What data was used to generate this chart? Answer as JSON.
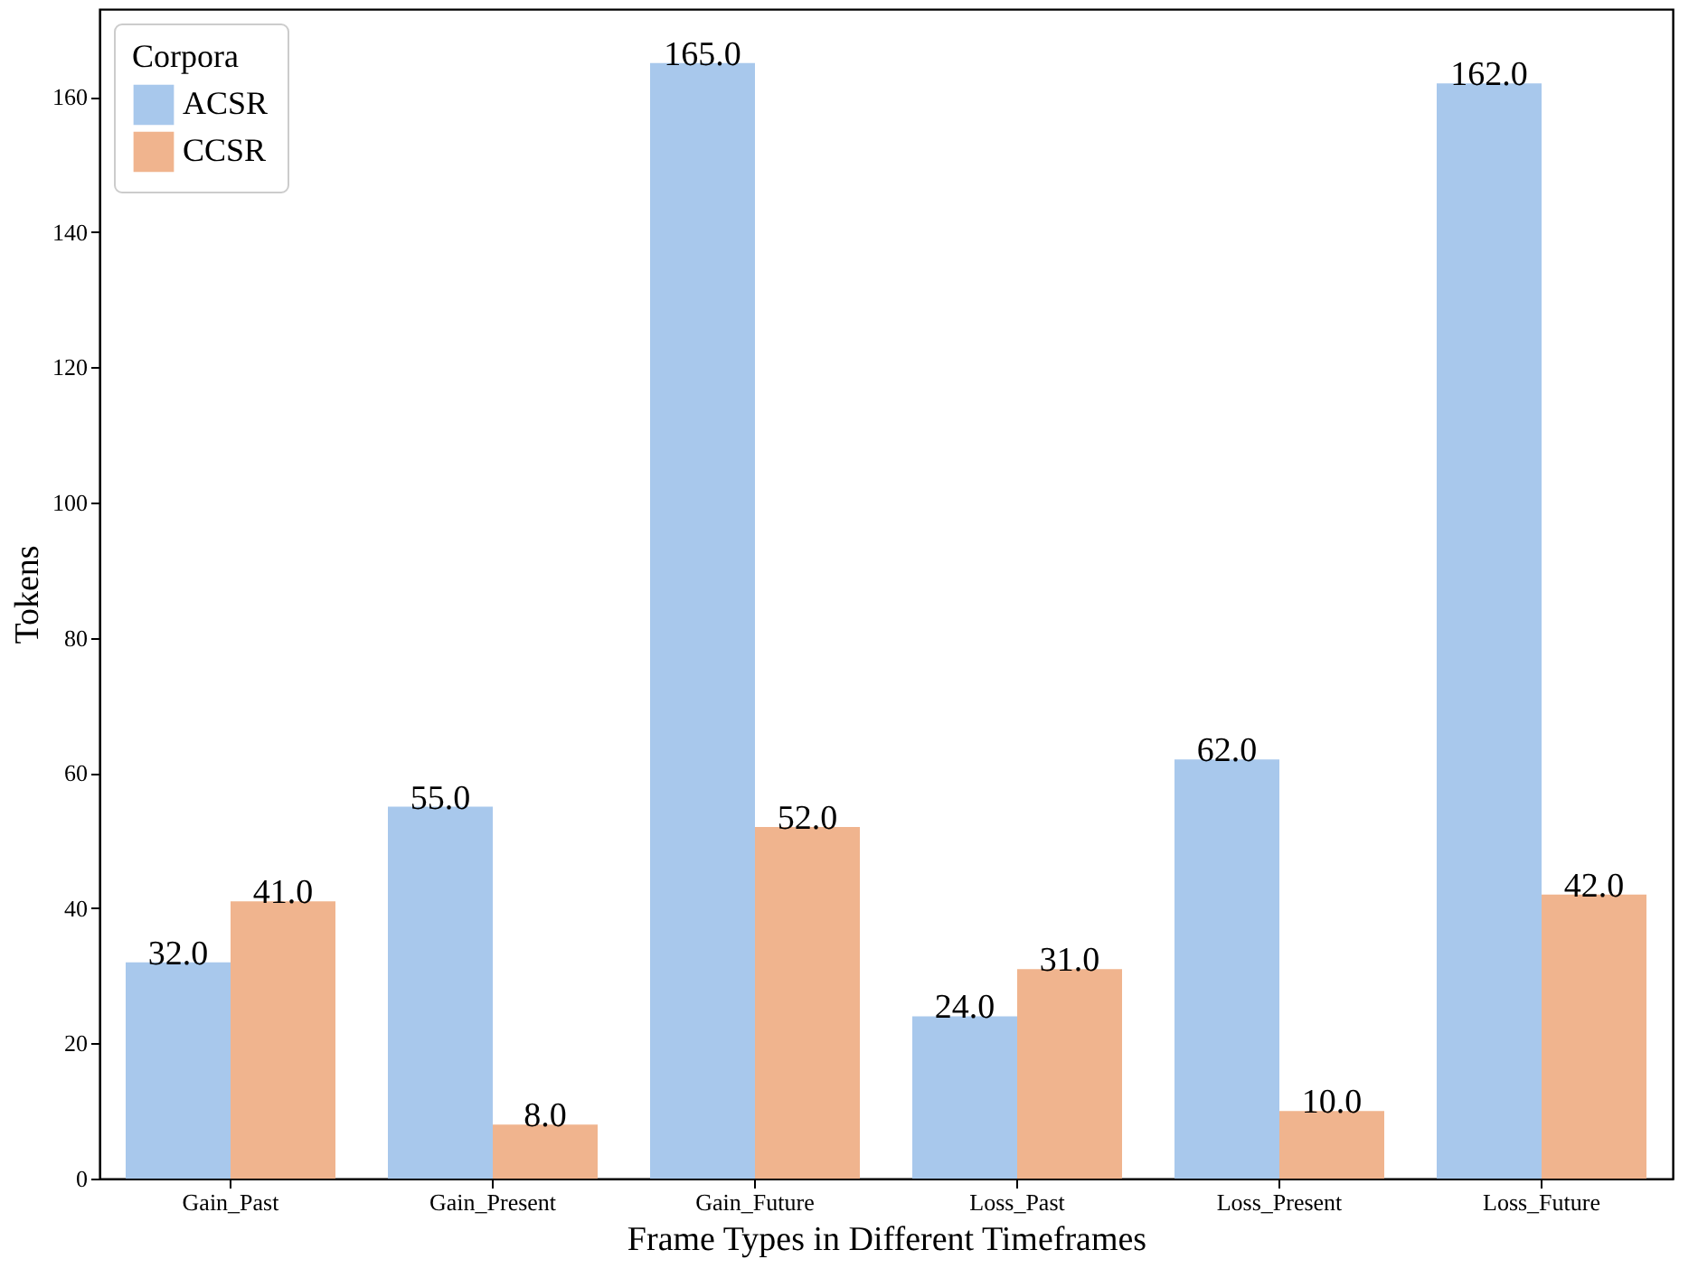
{
  "chart_data": {
    "type": "bar",
    "xlabel": "Frame Types in Different Timeframes",
    "ylabel": "Tokens",
    "legend_title": "Corpora",
    "categories": [
      "Gain_Past",
      "Gain_Present",
      "Gain_Future",
      "Loss_Past",
      "Loss_Present",
      "Loss_Future"
    ],
    "series": [
      {
        "name": "ACSR",
        "color": "#a8c8ec",
        "values": [
          32,
          55,
          165,
          24,
          62,
          162
        ],
        "value_labels": [
          "32.0",
          "55.0",
          "165.0",
          "24.0",
          "62.0",
          "162.0"
        ]
      },
      {
        "name": "CCSR",
        "color": "#f0b48e",
        "values": [
          41,
          8,
          52,
          31,
          10,
          42
        ],
        "value_labels": [
          "41.0",
          "8.0",
          "52.0",
          "31.0",
          "10.0",
          "42.0"
        ]
      }
    ],
    "ylim": [
      0,
      173
    ],
    "yticks": [
      0,
      20,
      40,
      60,
      80,
      100,
      120,
      140,
      160
    ],
    "grid": false,
    "legend": "top left"
  }
}
